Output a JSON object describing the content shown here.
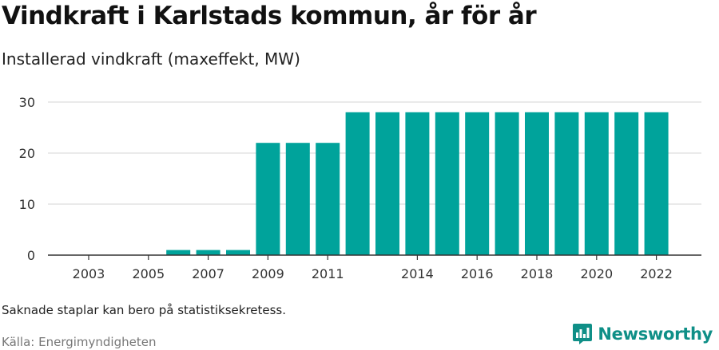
{
  "header": {
    "title": "Vindkraft i Karlstads kommun, år för år",
    "subtitle": "Installerad vindkraft (maxeffekt, MW)"
  },
  "footer": {
    "note": "Saknade staplar kan bero på statistiksekretess.",
    "source": "Källa: Energimyndigheten",
    "brand": "Newsworthy"
  },
  "colors": {
    "bar": "#00a39b",
    "grid": "#dddddd",
    "axis": "#333333",
    "brand": "#0f8f87"
  },
  "icons": {
    "logo": "bar-chart-badge-icon"
  },
  "chart_data": {
    "type": "bar",
    "categories": [
      "2003",
      "2004",
      "2005",
      "2006",
      "2007",
      "2008",
      "2009",
      "2010",
      "2011",
      "2012",
      "2013",
      "2014",
      "2015",
      "2016",
      "2017",
      "2018",
      "2019",
      "2020",
      "2021",
      "2022"
    ],
    "values": [
      null,
      null,
      null,
      1,
      1,
      1,
      22,
      22,
      22,
      28,
      28,
      28,
      28,
      28,
      28,
      28,
      28,
      28,
      28,
      28
    ],
    "xtick_labels": [
      "2003",
      "2005",
      "2007",
      "2009",
      "2011",
      "2014",
      "2016",
      "2018",
      "2020",
      "2022"
    ],
    "yticks": [
      0,
      10,
      20,
      30
    ],
    "ylim": [
      0,
      30
    ],
    "grid": true,
    "legend": "none"
  }
}
